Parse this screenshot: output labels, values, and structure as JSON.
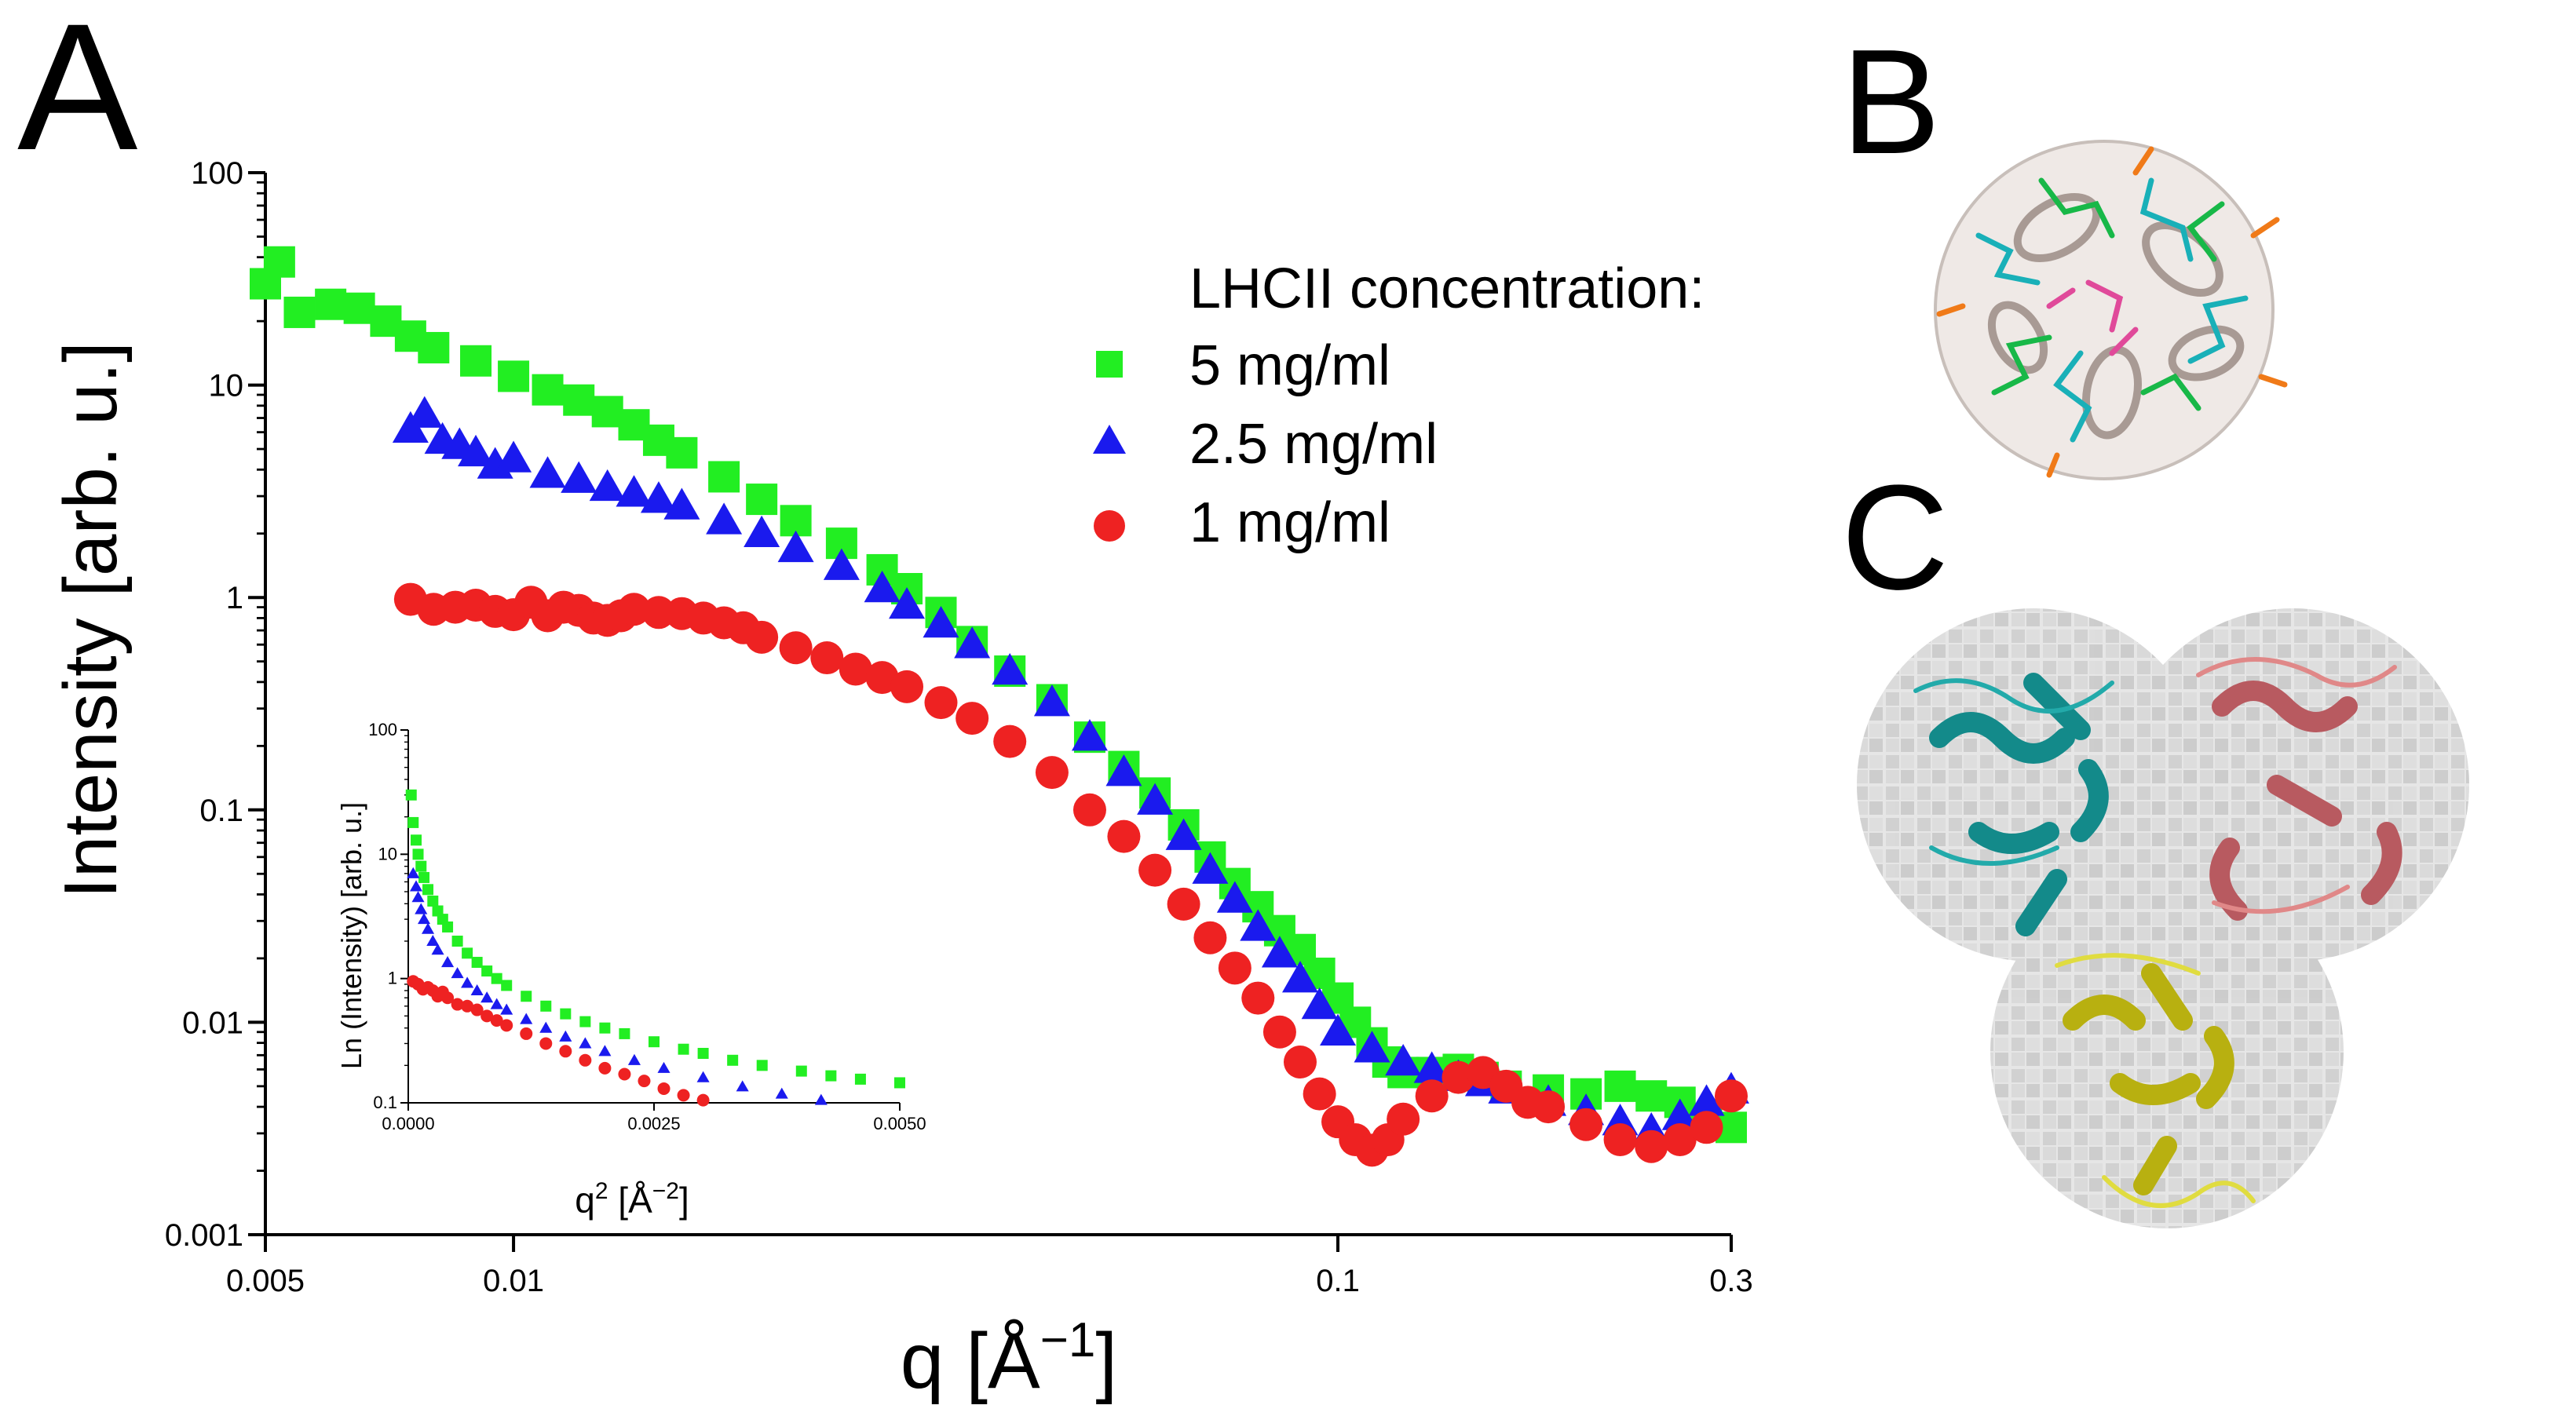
{
  "panels": {
    "a_label": "A",
    "b_label": "B",
    "c_label": "C"
  },
  "colors": {
    "series_5": "#22ee22",
    "series_2_5": "#1a1aee",
    "series_1": "#ee2222",
    "axis": "#000000",
    "protein_teal": "#138a8a",
    "protein_rose": "#b85a60",
    "protein_olive": "#b8b010"
  },
  "chart_data": [
    {
      "type": "scatter",
      "title": "",
      "xlabel": "q [Å",
      "xlabel_sup": "−1",
      "xlabel_end": "]",
      "ylabel": "Intensity [arb. u.]",
      "xscale": "log",
      "yscale": "log",
      "xlim": [
        0.005,
        0.3
      ],
      "ylim": [
        0.001,
        100
      ],
      "xticks": [
        0.005,
        0.01,
        0.1,
        0.3
      ],
      "xtick_labels": [
        "0.005",
        "0.01",
        "0.1",
        "0.3"
      ],
      "yticks": [
        0.001,
        0.01,
        0.1,
        1,
        10,
        100
      ],
      "ytick_labels": [
        "0.001",
        "0.01",
        "0.1",
        "1",
        "10",
        "100"
      ],
      "legend_title": "LHCII concentration:",
      "legend_position": "top-right",
      "series": [
        {
          "name": "5 mg/ml",
          "marker": "square",
          "color": "#22ee22",
          "x": [
            0.005,
            0.0052,
            0.0055,
            0.006,
            0.0065,
            0.007,
            0.0075,
            0.008,
            0.009,
            0.01,
            0.011,
            0.012,
            0.013,
            0.014,
            0.015,
            0.016,
            0.018,
            0.02,
            0.022,
            0.025,
            0.028,
            0.03,
            0.033,
            0.036,
            0.04,
            0.045,
            0.05,
            0.055,
            0.06,
            0.065,
            0.07,
            0.075,
            0.08,
            0.085,
            0.09,
            0.095,
            0.1,
            0.105,
            0.11,
            0.115,
            0.12,
            0.13,
            0.14,
            0.15,
            0.16,
            0.18,
            0.2,
            0.22,
            0.24,
            0.26,
            0.28,
            0.3
          ],
          "y": [
            30,
            38,
            22,
            24,
            23,
            20,
            17,
            15,
            13,
            11,
            9.5,
            8.5,
            7.5,
            6.5,
            5.5,
            4.8,
            3.7,
            2.9,
            2.3,
            1.8,
            1.35,
            1.1,
            0.85,
            0.62,
            0.45,
            0.33,
            0.22,
            0.16,
            0.12,
            0.085,
            0.06,
            0.045,
            0.035,
            0.027,
            0.022,
            0.017,
            0.013,
            0.01,
            0.008,
            0.0065,
            0.0058,
            0.0058,
            0.006,
            0.0055,
            0.005,
            0.0048,
            0.0046,
            0.005,
            0.0045,
            0.0042,
            0.0035,
            0.0032
          ]
        },
        {
          "name": "2.5 mg/ml",
          "marker": "triangle",
          "color": "#1a1aee",
          "x": [
            0.0075,
            0.0078,
            0.0082,
            0.0086,
            0.009,
            0.0095,
            0.01,
            0.011,
            0.012,
            0.013,
            0.014,
            0.015,
            0.016,
            0.018,
            0.02,
            0.022,
            0.025,
            0.028,
            0.03,
            0.033,
            0.036,
            0.04,
            0.045,
            0.05,
            0.055,
            0.06,
            0.065,
            0.07,
            0.075,
            0.08,
            0.085,
            0.09,
            0.095,
            0.1,
            0.11,
            0.12,
            0.13,
            0.14,
            0.15,
            0.16,
            0.18,
            0.2,
            0.22,
            0.24,
            0.26,
            0.28,
            0.3
          ],
          "y": [
            6.2,
            7.3,
            5.5,
            5.2,
            4.8,
            4.2,
            4.5,
            3.8,
            3.6,
            3.3,
            3.1,
            2.9,
            2.7,
            2.3,
            2.0,
            1.7,
            1.4,
            1.1,
            0.92,
            0.75,
            0.6,
            0.45,
            0.32,
            0.22,
            0.15,
            0.11,
            0.075,
            0.052,
            0.038,
            0.028,
            0.021,
            0.016,
            0.012,
            0.009,
            0.0075,
            0.0065,
            0.006,
            0.0055,
            0.0052,
            0.0048,
            0.0042,
            0.0038,
            0.0034,
            0.0031,
            0.0036,
            0.0042,
            0.0048
          ]
        },
        {
          "name": "1 mg/ml",
          "marker": "circle",
          "color": "#ee2222",
          "x": [
            0.0075,
            0.008,
            0.0085,
            0.009,
            0.0095,
            0.01,
            0.0105,
            0.011,
            0.0115,
            0.012,
            0.0125,
            0.013,
            0.0135,
            0.014,
            0.015,
            0.016,
            0.017,
            0.018,
            0.019,
            0.02,
            0.022,
            0.024,
            0.026,
            0.028,
            0.03,
            0.033,
            0.036,
            0.04,
            0.045,
            0.05,
            0.055,
            0.06,
            0.065,
            0.07,
            0.075,
            0.08,
            0.085,
            0.09,
            0.095,
            0.1,
            0.105,
            0.11,
            0.115,
            0.12,
            0.13,
            0.14,
            0.15,
            0.16,
            0.17,
            0.18,
            0.2,
            0.22,
            0.24,
            0.26,
            0.28,
            0.3
          ],
          "y": [
            0.98,
            0.88,
            0.9,
            0.92,
            0.86,
            0.83,
            0.95,
            0.82,
            0.9,
            0.87,
            0.8,
            0.78,
            0.82,
            0.88,
            0.85,
            0.84,
            0.8,
            0.76,
            0.72,
            0.65,
            0.58,
            0.52,
            0.46,
            0.42,
            0.38,
            0.32,
            0.27,
            0.21,
            0.15,
            0.1,
            0.075,
            0.052,
            0.036,
            0.025,
            0.018,
            0.013,
            0.009,
            0.0065,
            0.0046,
            0.0034,
            0.0028,
            0.0025,
            0.0028,
            0.0035,
            0.0045,
            0.0055,
            0.0058,
            0.005,
            0.0042,
            0.004,
            0.0033,
            0.0028,
            0.0026,
            0.0028,
            0.0032,
            0.0045
          ]
        }
      ]
    },
    {
      "type": "scatter",
      "title": "",
      "inset": true,
      "xlabel": "q",
      "xlabel_sup1": "2",
      "xlabel_mid": " [Å",
      "xlabel_sup2": "−2",
      "xlabel_end": "]",
      "ylabel": "Ln (Intensity) [arb. u.]",
      "xscale": "linear",
      "yscale": "log",
      "xlim": [
        0,
        0.005
      ],
      "ylim": [
        0.1,
        100
      ],
      "xticks": [
        0,
        0.0025,
        0.005
      ],
      "xtick_labels": [
        "0.0000",
        "0.0025",
        "0.0050"
      ],
      "yticks": [
        0.1,
        1,
        10,
        100
      ],
      "ytick_labels": [
        "0.1",
        "1",
        "10",
        "100"
      ],
      "series": [
        {
          "name": "5 mg/ml",
          "marker": "square",
          "color": "#22ee22",
          "x": [
            3e-05,
            5e-05,
            8e-05,
            0.0001,
            0.00013,
            0.00016,
            0.0002,
            0.00025,
            0.0003,
            0.00035,
            0.0004,
            0.0005,
            0.0006,
            0.0007,
            0.0008,
            0.0009,
            0.001,
            0.0012,
            0.0014,
            0.0016,
            0.0018,
            0.002,
            0.0022,
            0.0025,
            0.0028,
            0.003,
            0.0033,
            0.0036,
            0.004,
            0.0043,
            0.0046,
            0.005
          ],
          "y": [
            30,
            18,
            13,
            10,
            8,
            6.5,
            5.2,
            4.2,
            3.5,
            3.0,
            2.6,
            2.0,
            1.6,
            1.35,
            1.15,
            1.0,
            0.88,
            0.72,
            0.6,
            0.52,
            0.45,
            0.4,
            0.36,
            0.31,
            0.27,
            0.25,
            0.22,
            0.2,
            0.18,
            0.165,
            0.155,
            0.145
          ]
        },
        {
          "name": "2.5 mg/ml",
          "marker": "triangle",
          "color": "#1a1aee",
          "x": [
            5e-05,
            8e-05,
            0.0001,
            0.00013,
            0.00016,
            0.0002,
            0.00025,
            0.0003,
            0.0004,
            0.0005,
            0.0006,
            0.0007,
            0.0008,
            0.0009,
            0.001,
            0.0012,
            0.0014,
            0.0016,
            0.0018,
            0.002,
            0.0023,
            0.0026,
            0.003,
            0.0034,
            0.0038,
            0.0042
          ],
          "y": [
            7.0,
            5.5,
            4.5,
            3.6,
            3.0,
            2.5,
            2.0,
            1.7,
            1.35,
            1.1,
            0.92,
            0.8,
            0.7,
            0.62,
            0.56,
            0.47,
            0.4,
            0.34,
            0.3,
            0.26,
            0.22,
            0.19,
            0.16,
            0.135,
            0.118,
            0.105
          ]
        },
        {
          "name": "1 mg/ml",
          "marker": "circle",
          "color": "#ee2222",
          "x": [
            5e-05,
            0.0001,
            0.00015,
            0.0002,
            0.00025,
            0.0003,
            0.00035,
            0.0004,
            0.0005,
            0.0006,
            0.0007,
            0.0008,
            0.0009,
            0.001,
            0.0012,
            0.0014,
            0.0016,
            0.0018,
            0.002,
            0.0022,
            0.0024,
            0.0026,
            0.0028,
            0.003
          ],
          "y": [
            0.95,
            0.9,
            0.82,
            0.85,
            0.8,
            0.72,
            0.78,
            0.7,
            0.62,
            0.6,
            0.56,
            0.5,
            0.46,
            0.42,
            0.36,
            0.3,
            0.26,
            0.22,
            0.19,
            0.17,
            0.15,
            0.13,
            0.115,
            0.105
          ]
        }
      ]
    }
  ]
}
